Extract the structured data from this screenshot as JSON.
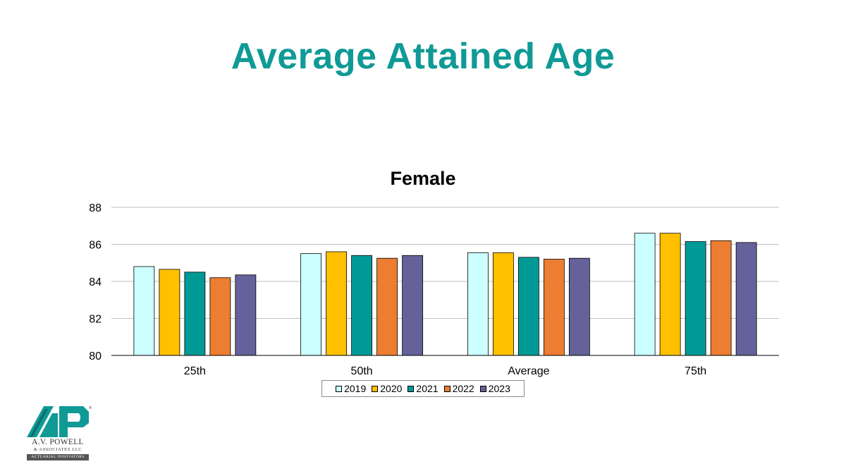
{
  "slide": {
    "title": "Average Attained Age",
    "title_color": "#0F9A96"
  },
  "chart_data": {
    "type": "bar",
    "title": "Female",
    "categories": [
      "25th",
      "50th",
      "Average",
      "75th"
    ],
    "series": [
      {
        "name": "2019",
        "color": "#CCFFFF",
        "values": [
          84.8,
          85.5,
          85.55,
          86.6
        ]
      },
      {
        "name": "2020",
        "color": "#FFC000",
        "values": [
          84.65,
          85.6,
          85.55,
          86.6
        ]
      },
      {
        "name": "2021",
        "color": "#009A96",
        "values": [
          84.5,
          85.4,
          85.3,
          86.15
        ]
      },
      {
        "name": "2022",
        "color": "#ED7D31",
        "values": [
          84.2,
          85.25,
          85.2,
          86.2
        ]
      },
      {
        "name": "2023",
        "color": "#65619A",
        "values": [
          84.35,
          85.4,
          85.25,
          86.1
        ]
      }
    ],
    "ylim": [
      80,
      88
    ],
    "yticks": [
      80,
      82,
      84,
      86,
      88
    ],
    "grid": true,
    "legend_position": "bottom"
  },
  "logo": {
    "name": "A.V. POWELL",
    "sub": "& ASSOCIATES LLC",
    "tagline": "ACTUARIAL INNOVATORS"
  }
}
